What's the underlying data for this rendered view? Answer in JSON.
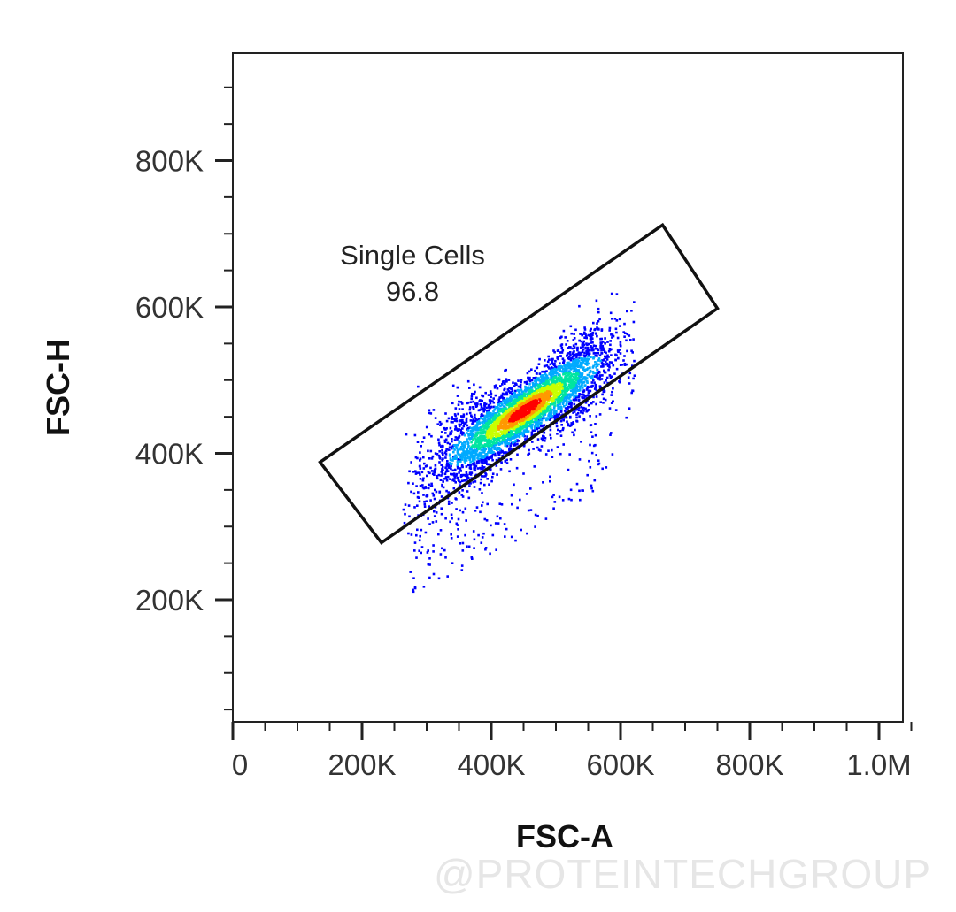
{
  "chart_data": {
    "type": "scatter",
    "title": "",
    "xlabel": "FSC-A",
    "ylabel": "FSC-H",
    "xlim": [
      0,
      1050000
    ],
    "ylim": [
      0,
      920000
    ],
    "x_ticks": [
      {
        "value": 0,
        "label": "0"
      },
      {
        "value": 200000,
        "label": "200K"
      },
      {
        "value": 400000,
        "label": "400K"
      },
      {
        "value": 600000,
        "label": "600K"
      },
      {
        "value": 800000,
        "label": "800K"
      },
      {
        "value": 1000000,
        "label": "1.0M"
      }
    ],
    "y_ticks": [
      {
        "value": 200000,
        "label": "200K"
      },
      {
        "value": 400000,
        "label": "400K"
      },
      {
        "value": 600000,
        "label": "600K"
      },
      {
        "value": 800000,
        "label": "800K"
      }
    ],
    "grid": false,
    "color_scale": [
      "#0000ff",
      "#00aaff",
      "#00e5a0",
      "#c8ff00",
      "#ff9900",
      "#ff0000"
    ],
    "population": {
      "description_units": "data",
      "center": [
        450000,
        460000
      ],
      "slope": 0.56,
      "x_range": [
        270000,
        615000
      ]
    },
    "gate": {
      "name": "Single Cells",
      "percent": "96.8",
      "shape": "polygon",
      "vertices": [
        [
          135000,
          388000
        ],
        [
          665000,
          712000
        ],
        [
          750000,
          598000
        ],
        [
          230000,
          278000
        ]
      ]
    }
  },
  "watermark": {
    "text": "@PROTEINTECHGROUP"
  }
}
